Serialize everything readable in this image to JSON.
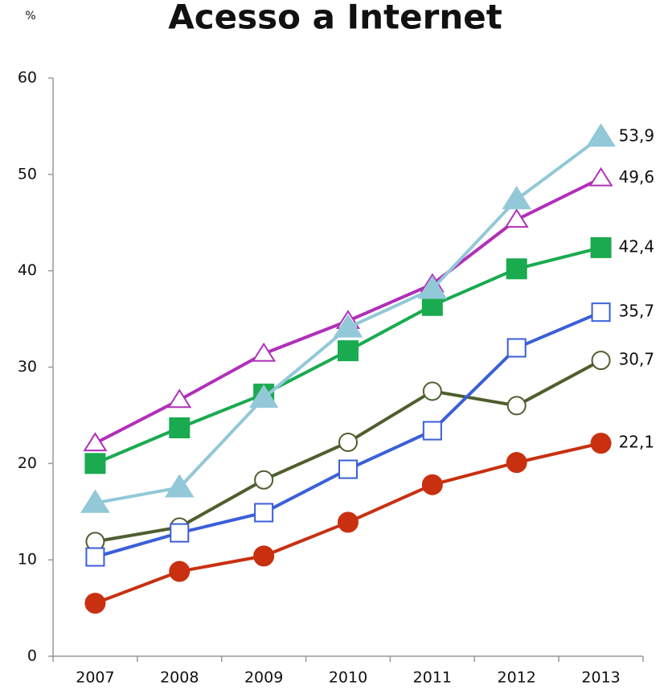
{
  "chart_data": {
    "type": "line",
    "title": "Acesso a Internet",
    "y_label": "%",
    "categories": [
      "2007",
      "2008",
      "2009",
      "2010",
      "2011",
      "2012",
      "2013"
    ],
    "ylim": [
      0,
      60
    ],
    "yticks": [
      0,
      10,
      20,
      30,
      40,
      50,
      60
    ],
    "grid": false,
    "series": [
      {
        "color": "#92c8d8",
        "marker": "triangle",
        "filled": true,
        "values": [
          15.9,
          17.5,
          26.8,
          34.1,
          38.1,
          47.4,
          53.9
        ],
        "value_labels": [
          null,
          null,
          null,
          null,
          null,
          null,
          "53,9"
        ]
      },
      {
        "color": "#b030b8",
        "marker": "triangle",
        "filled": false,
        "values": [
          22.1,
          26.6,
          31.4,
          34.8,
          38.6,
          45.3,
          49.6
        ],
        "value_labels": [
          null,
          null,
          null,
          null,
          null,
          null,
          "49,6"
        ]
      },
      {
        "color": "#1aaa50",
        "marker": "square",
        "filled": true,
        "values": [
          20.0,
          23.7,
          27.2,
          31.7,
          36.4,
          40.2,
          42.4
        ],
        "value_labels": [
          null,
          null,
          null,
          null,
          null,
          null,
          "42,4"
        ]
      },
      {
        "color": "#3a5fd8",
        "marker": "square",
        "filled": false,
        "values": [
          10.3,
          12.8,
          14.9,
          19.4,
          23.4,
          32.0,
          35.7
        ],
        "value_labels": [
          null,
          null,
          null,
          null,
          null,
          null,
          "35,7"
        ]
      },
      {
        "color": "#4f5e2e",
        "marker": "circle",
        "filled": false,
        "values": [
          11.9,
          13.4,
          18.3,
          22.2,
          27.5,
          26.0,
          30.7
        ],
        "value_labels": [
          null,
          null,
          null,
          null,
          null,
          null,
          "30,7"
        ]
      },
      {
        "color": "#c83010",
        "marker": "circle",
        "filled": true,
        "values": [
          5.5,
          8.8,
          10.4,
          13.9,
          17.8,
          20.1,
          22.1
        ],
        "value_labels": [
          null,
          null,
          null,
          null,
          null,
          null,
          "22,1"
        ]
      }
    ]
  }
}
